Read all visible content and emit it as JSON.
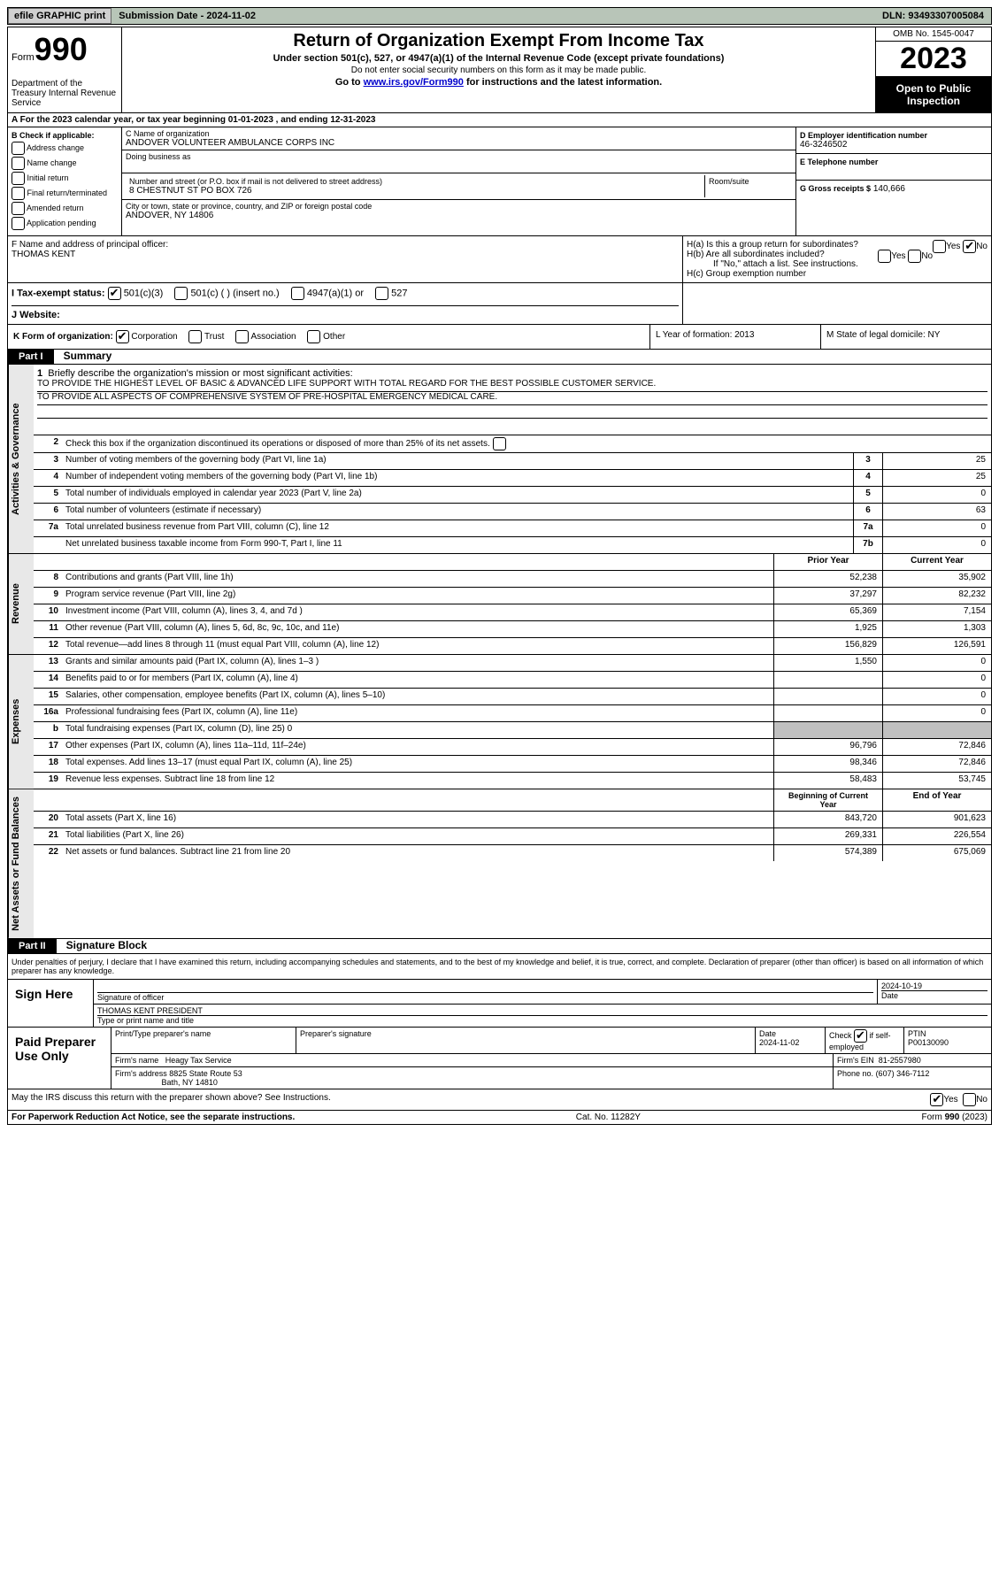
{
  "top": {
    "efile_btn": "efile GRAPHIC print",
    "sub_date": "Submission Date - 2024-11-02",
    "dln": "DLN: 93493307005084"
  },
  "header": {
    "form_word": "Form",
    "form_num": "990",
    "dept": "Department of the Treasury Internal Revenue Service",
    "title": "Return of Organization Exempt From Income Tax",
    "sub1": "Under section 501(c), 527, or 4947(a)(1) of the Internal Revenue Code (except private foundations)",
    "sub2": "Do not enter social security numbers on this form as it may be made public.",
    "sub3_pre": "Go to ",
    "sub3_link": "www.irs.gov/Form990",
    "sub3_post": " for instructions and the latest information.",
    "omb": "OMB No. 1545-0047",
    "year": "2023",
    "otp": "Open to Public Inspection"
  },
  "period": "A For the 2023 calendar year, or tax year beginning 01-01-2023    , and ending 12-31-2023",
  "col_b": {
    "label": "B Check if applicable:",
    "items": [
      "Address change",
      "Name change",
      "Initial return",
      "Final return/terminated",
      "Amended return",
      "Application pending"
    ]
  },
  "col_c": {
    "name_lbl": "C Name of organization",
    "name": "ANDOVER VOLUNTEER AMBULANCE CORPS INC",
    "dba_lbl": "Doing business as",
    "street_lbl": "Number and street (or P.O. box if mail is not delivered to street address)",
    "street": "8 CHESTNUT ST PO BOX 726",
    "room_lbl": "Room/suite",
    "city_lbl": "City or town, state or province, country, and ZIP or foreign postal code",
    "city": "ANDOVER, NY  14806"
  },
  "col_de": {
    "d_lbl": "D Employer identification number",
    "d_val": "46-3246502",
    "e_lbl": "E Telephone number",
    "g_lbl": "G Gross receipts $",
    "g_val": "140,666"
  },
  "f": {
    "lbl": "F  Name and address of principal officer:",
    "name": "THOMAS KENT"
  },
  "h": {
    "a": "H(a)  Is this a group return for subordinates?",
    "b": "H(b)  Are all subordinates included?",
    "b_note": "If \"No,\" attach a list. See instructions.",
    "c": "H(c)  Group exemption number"
  },
  "i": {
    "lbl": "I    Tax-exempt status:",
    "opts": [
      "501(c)(3)",
      "501(c) (  ) (insert no.)",
      "4947(a)(1) or",
      "527"
    ]
  },
  "j": {
    "lbl": "J   Website:"
  },
  "k": {
    "lbl": "K Form of organization:",
    "opts": [
      "Corporation",
      "Trust",
      "Association",
      "Other"
    ]
  },
  "l": "L Year of formation: 2013",
  "m": "M State of legal domicile: NY",
  "part1": {
    "num": "Part I",
    "title": "Summary"
  },
  "summary": {
    "q1_lbl": "Briefly describe the organization's mission or most significant activities:",
    "q1_text1": "TO PROVIDE THE HIGHEST LEVEL OF BASIC & ADVANCED LIFE SUPPORT WITH TOTAL REGARD FOR THE BEST POSSIBLE CUSTOMER SERVICE.",
    "q1_text2": "TO PROVIDE ALL ASPECTS OF COMPREHENSIVE SYSTEM OF PRE-HOSPITAL EMERGENCY MEDICAL CARE.",
    "q2": "Check this box        if the organization discontinued its operations or disposed of more than 25% of its net assets.",
    "lines": [
      {
        "n": "3",
        "t": "Number of voting members of the governing body (Part VI, line 1a)",
        "box": "3",
        "v": "25"
      },
      {
        "n": "4",
        "t": "Number of independent voting members of the governing body (Part VI, line 1b)",
        "box": "4",
        "v": "25"
      },
      {
        "n": "5",
        "t": "Total number of individuals employed in calendar year 2023 (Part V, line 2a)",
        "box": "5",
        "v": "0"
      },
      {
        "n": "6",
        "t": "Total number of volunteers (estimate if necessary)",
        "box": "6",
        "v": "63"
      },
      {
        "n": "7a",
        "t": "Total unrelated business revenue from Part VIII, column (C), line 12",
        "box": "7a",
        "v": "0"
      },
      {
        "n": "",
        "t": "Net unrelated business taxable income from Form 990-T, Part I, line 11",
        "box": "7b",
        "v": "0"
      }
    ]
  },
  "revenue": {
    "section": "Revenue",
    "hdr_prior": "Prior Year",
    "hdr_curr": "Current Year",
    "lines": [
      {
        "n": "8",
        "t": "Contributions and grants (Part VIII, line 1h)",
        "p": "52,238",
        "c": "35,902"
      },
      {
        "n": "9",
        "t": "Program service revenue (Part VIII, line 2g)",
        "p": "37,297",
        "c": "82,232"
      },
      {
        "n": "10",
        "t": "Investment income (Part VIII, column (A), lines 3, 4, and 7d )",
        "p": "65,369",
        "c": "7,154"
      },
      {
        "n": "11",
        "t": "Other revenue (Part VIII, column (A), lines 5, 6d, 8c, 9c, 10c, and 11e)",
        "p": "1,925",
        "c": "1,303"
      },
      {
        "n": "12",
        "t": "Total revenue—add lines 8 through 11 (must equal Part VIII, column (A), line 12)",
        "p": "156,829",
        "c": "126,591"
      }
    ]
  },
  "expenses": {
    "section": "Expenses",
    "lines": [
      {
        "n": "13",
        "t": "Grants and similar amounts paid (Part IX, column (A), lines 1–3 )",
        "p": "1,550",
        "c": "0"
      },
      {
        "n": "14",
        "t": "Benefits paid to or for members (Part IX, column (A), line 4)",
        "p": "",
        "c": "0"
      },
      {
        "n": "15",
        "t": "Salaries, other compensation, employee benefits (Part IX, column (A), lines 5–10)",
        "p": "",
        "c": "0"
      },
      {
        "n": "16a",
        "t": "Professional fundraising fees (Part IX, column (A), line 11e)",
        "p": "",
        "c": "0"
      },
      {
        "n": "b",
        "t": "Total fundraising expenses (Part IX, column (D), line 25) 0",
        "p": "shaded",
        "c": "shaded"
      },
      {
        "n": "17",
        "t": "Other expenses (Part IX, column (A), lines 11a–11d, 11f–24e)",
        "p": "96,796",
        "c": "72,846"
      },
      {
        "n": "18",
        "t": "Total expenses. Add lines 13–17 (must equal Part IX, column (A), line 25)",
        "p": "98,346",
        "c": "72,846"
      },
      {
        "n": "19",
        "t": "Revenue less expenses. Subtract line 18 from line 12",
        "p": "58,483",
        "c": "53,745"
      }
    ]
  },
  "netassets": {
    "section": "Net Assets or Fund Balances",
    "hdr_begin": "Beginning of Current Year",
    "hdr_end": "End of Year",
    "lines": [
      {
        "n": "20",
        "t": "Total assets (Part X, line 16)",
        "p": "843,720",
        "c": "901,623"
      },
      {
        "n": "21",
        "t": "Total liabilities (Part X, line 26)",
        "p": "269,331",
        "c": "226,554"
      },
      {
        "n": "22",
        "t": "Net assets or fund balances. Subtract line 21 from line 20",
        "p": "574,389",
        "c": "675,069"
      }
    ]
  },
  "part2": {
    "num": "Part II",
    "title": "Signature Block"
  },
  "sig": {
    "penalty": "Under penalties of perjury, I declare that I have examined this return, including accompanying schedules and statements, and to the best of my knowledge and belief, it is true, correct, and complete. Declaration of preparer (other than officer) is based on all information of which preparer has any knowledge.",
    "sign_here": "Sign Here",
    "sig_officer_lbl": "Signature of officer",
    "date": "2024-10-19",
    "date_lbl": "Date",
    "name_title": "THOMAS KENT PRESIDENT",
    "type_lbl": "Type or print name and title"
  },
  "prep": {
    "paid": "Paid Preparer Use Only",
    "name_lbl": "Print/Type preparer's name",
    "sig_lbl": "Preparer's signature",
    "date_lbl": "Date",
    "date": "2024-11-02",
    "check_lbl": "Check",
    "check_if": "if self-employed",
    "ptin_lbl": "PTIN",
    "ptin": "P00130090",
    "firm_name_lbl": "Firm's name",
    "firm_name": "Heagy Tax Service",
    "firm_ein_lbl": "Firm's EIN",
    "firm_ein": "81-2557980",
    "firm_addr_lbl": "Firm's address",
    "firm_addr1": "8825 State Route 53",
    "firm_addr2": "Bath, NY  14810",
    "phone_lbl": "Phone no.",
    "phone": "(607) 346-7112"
  },
  "discuss": "May the IRS discuss this return with the preparer shown above? See Instructions.",
  "footer": {
    "pra": "For Paperwork Reduction Act Notice, see the separate instructions.",
    "cat": "Cat. No. 11282Y",
    "form": "Form 990 (2023)"
  }
}
